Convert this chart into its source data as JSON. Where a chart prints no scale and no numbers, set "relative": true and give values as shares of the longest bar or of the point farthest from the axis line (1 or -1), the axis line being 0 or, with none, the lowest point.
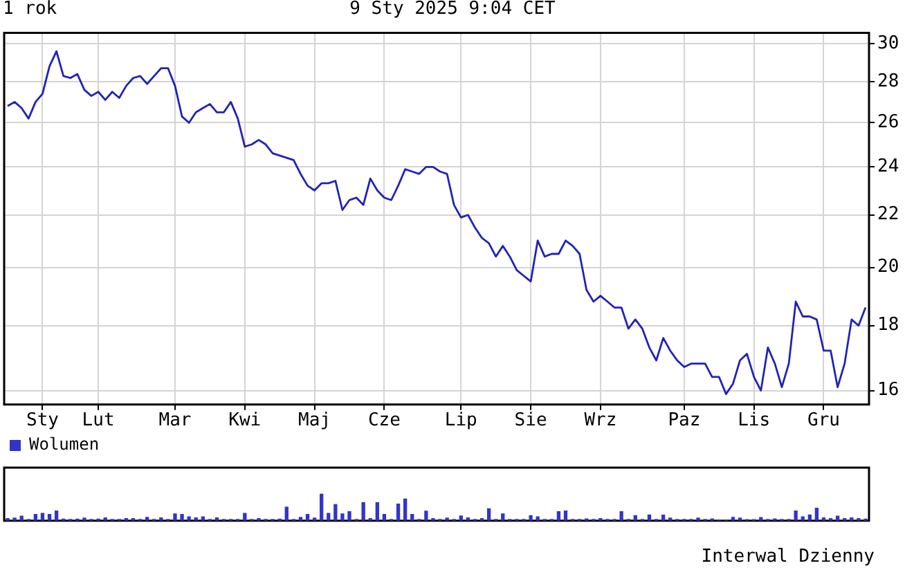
{
  "chart_data": [
    {
      "type": "line",
      "title": "1 rok",
      "subtitle": "9 Sty 2025 9:04 CET",
      "log": "y",
      "grid": true,
      "categories": [
        null,
        null,
        null,
        null,
        null,
        "Sty",
        null,
        null,
        null,
        null,
        null,
        null,
        null,
        "Lut",
        null,
        null,
        null,
        null,
        null,
        null,
        null,
        null,
        null,
        null,
        "Mar",
        null,
        null,
        null,
        null,
        null,
        null,
        null,
        null,
        null,
        "Kwi",
        null,
        null,
        null,
        null,
        null,
        null,
        null,
        null,
        null,
        "Maj",
        null,
        null,
        null,
        null,
        null,
        null,
        null,
        null,
        null,
        "Cze",
        null,
        null,
        null,
        null,
        null,
        null,
        null,
        null,
        null,
        null,
        "Lip",
        null,
        null,
        null,
        null,
        null,
        null,
        null,
        null,
        null,
        "Sie",
        null,
        null,
        null,
        null,
        null,
        null,
        null,
        null,
        null,
        "Wrz",
        null,
        null,
        null,
        null,
        null,
        null,
        null,
        null,
        null,
        null,
        null,
        "Paz",
        null,
        null,
        null,
        null,
        null,
        null,
        null,
        null,
        null,
        "Lis",
        null,
        null,
        null,
        null,
        null,
        null,
        null,
        null,
        null,
        "Gru",
        null,
        null,
        null,
        null,
        null,
        null
      ],
      "series": [
        {
          "color": "#2222b8",
          "values": [
            26.8,
            27.0,
            26.7,
            26.2,
            27.0,
            27.4,
            28.8,
            29.6,
            28.3,
            28.2,
            28.4,
            27.6,
            27.3,
            27.5,
            27.1,
            27.5,
            27.2,
            27.8,
            28.2,
            28.3,
            27.9,
            28.3,
            28.7,
            28.7,
            27.8,
            26.3,
            26.0,
            26.5,
            26.7,
            26.9,
            26.5,
            26.5,
            27.0,
            26.2,
            24.9,
            25.0,
            25.2,
            25.0,
            24.6,
            24.5,
            24.4,
            24.3,
            23.7,
            23.2,
            23.0,
            23.3,
            23.3,
            23.4,
            22.2,
            22.6,
            22.7,
            22.4,
            23.5,
            23.0,
            22.7,
            22.6,
            23.2,
            23.9,
            23.8,
            23.7,
            24.0,
            24.0,
            23.8,
            23.7,
            22.4,
            21.9,
            22.0,
            21.5,
            21.1,
            20.9,
            20.4,
            20.8,
            20.4,
            19.9,
            19.7,
            19.5,
            21.0,
            20.4,
            20.5,
            20.5,
            21.0,
            20.8,
            20.5,
            19.2,
            18.8,
            19.0,
            18.8,
            18.6,
            18.6,
            17.9,
            18.2,
            17.9,
            17.3,
            16.9,
            17.6,
            17.2,
            16.9,
            16.7,
            16.8,
            16.8,
            16.8,
            16.4,
            16.4,
            15.9,
            16.2,
            16.9,
            17.1,
            16.4,
            16.0,
            17.3,
            16.8,
            16.1,
            16.8,
            18.8,
            18.3,
            18.3,
            18.2,
            17.2,
            17.2,
            16.1,
            16.8,
            18.2,
            18.0,
            18.6
          ]
        }
      ],
      "ylim": [
        15.6,
        30.6
      ],
      "yticks": [
        16,
        18,
        20,
        22,
        24,
        26,
        28,
        30
      ]
    },
    {
      "type": "bar",
      "relative": true,
      "legend": "top left",
      "annotations": [
        "Interwal Dzienny"
      ],
      "categories": [
        null,
        null,
        null,
        null,
        null,
        null,
        null,
        null,
        null,
        null,
        null,
        null,
        null,
        null,
        null,
        null,
        null,
        null,
        null,
        null,
        null,
        null,
        null,
        null,
        null,
        null,
        null,
        null,
        null,
        null,
        null,
        null,
        null,
        null,
        null,
        null,
        null,
        null,
        null,
        null,
        null,
        null,
        null,
        null,
        null,
        null,
        null,
        null,
        null,
        null,
        null,
        null,
        null,
        null,
        null,
        null,
        null,
        null,
        null,
        null,
        null,
        null,
        null,
        null,
        null,
        null,
        null,
        null,
        null,
        null,
        null,
        null,
        null,
        null,
        null,
        null,
        null,
        null,
        null,
        null,
        null,
        null,
        null,
        null,
        null,
        null,
        null,
        null,
        null,
        null,
        null,
        null,
        null,
        null,
        null,
        null,
        null,
        null,
        null,
        null,
        null,
        null,
        null,
        null,
        null,
        null,
        null,
        null,
        null,
        null,
        null,
        null,
        null,
        null,
        null,
        null,
        null,
        null,
        null,
        null,
        null,
        null,
        null,
        null
      ],
      "series": [
        {
          "name": "Wolumen",
          "color": "#3333cc",
          "values": [
            0.08,
            0.1,
            0.17,
            0.05,
            0.24,
            0.28,
            0.24,
            0.37,
            0.06,
            0.05,
            0.06,
            0.1,
            0.05,
            0.06,
            0.11,
            0.05,
            0.05,
            0.08,
            0.08,
            0.05,
            0.13,
            0.05,
            0.11,
            0.05,
            0.26,
            0.24,
            0.15,
            0.11,
            0.15,
            0.05,
            0.11,
            0.05,
            0.05,
            0.05,
            0.28,
            0.05,
            0.08,
            0.05,
            0.05,
            0.06,
            0.51,
            0.05,
            0.13,
            0.24,
            0.1,
            1.0,
            0.28,
            0.61,
            0.26,
            0.34,
            0.05,
            0.68,
            0.08,
            0.68,
            0.24,
            0.05,
            0.63,
            0.82,
            0.24,
            0.05,
            0.36,
            0.08,
            0.05,
            0.1,
            0.05,
            0.18,
            0.11,
            0.05,
            0.08,
            0.45,
            0.05,
            0.26,
            0.05,
            0.05,
            0.05,
            0.19,
            0.15,
            0.05,
            0.05,
            0.34,
            0.37,
            0.05,
            0.05,
            0.07,
            0.05,
            0.08,
            0.05,
            0.05,
            0.34,
            0.05,
            0.19,
            0.05,
            0.22,
            0.05,
            0.21,
            0.1,
            0.05,
            0.05,
            0.05,
            0.1,
            0.05,
            0.07,
            0.03,
            0.03,
            0.13,
            0.1,
            0.04,
            0.04,
            0.12,
            0.05,
            0.07,
            0.05,
            0.05,
            0.37,
            0.15,
            0.22,
            0.47,
            0.11,
            0.08,
            0.17,
            0.08,
            0.11,
            0.08,
            0.06
          ]
        }
      ]
    }
  ]
}
